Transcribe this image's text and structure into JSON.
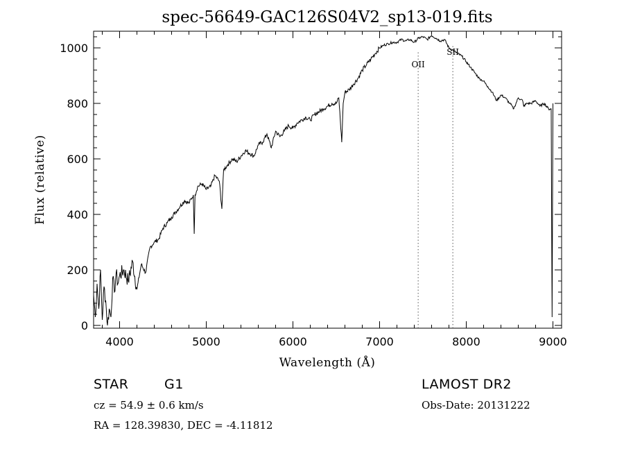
{
  "chart_data": {
    "type": "line",
    "title": "spec-56649-GAC126S04V2_sp13-019.fits",
    "xlabel": "Wavelength (Å)",
    "ylabel": "Flux (relative)",
    "xlim": [
      3700,
      9100
    ],
    "ylim": [
      -10,
      1060
    ],
    "x_ticks": [
      4000,
      5000,
      6000,
      7000,
      8000,
      9000
    ],
    "y_ticks": [
      0,
      200,
      400,
      600,
      800,
      1000
    ],
    "series": [
      {
        "x": [
          3700,
          3720,
          3740,
          3760,
          3780,
          3800,
          3820,
          3840,
          3860,
          3880,
          3900,
          3920,
          3940,
          3960,
          3980,
          4000,
          4050,
          4100,
          4150,
          4200,
          4250,
          4300,
          4350,
          4400,
          4450,
          4500,
          4550,
          4600,
          4650,
          4700,
          4750,
          4800,
          4850,
          4861,
          4870,
          4900,
          4950,
          5000,
          5050,
          5100,
          5150,
          5180,
          5200,
          5250,
          5300,
          5350,
          5400,
          5450,
          5500,
          5550,
          5600,
          5650,
          5700,
          5750,
          5800,
          5850,
          5900,
          5950,
          6000,
          6050,
          6100,
          6150,
          6200,
          6250,
          6300,
          6350,
          6400,
          6450,
          6500,
          6530,
          6563,
          6580,
          6600,
          6650,
          6700,
          6750,
          6800,
          6850,
          6900,
          6950,
          7000,
          7050,
          7100,
          7150,
          7200,
          7250,
          7300,
          7350,
          7400,
          7450,
          7500,
          7550,
          7600,
          7650,
          7700,
          7750,
          7800,
          7850,
          7900,
          7950,
          8000,
          8050,
          8100,
          8150,
          8200,
          8250,
          8300,
          8350,
          8400,
          8450,
          8500,
          8530,
          8542,
          8560,
          8600,
          8650,
          8662,
          8700,
          8750,
          8800,
          8850,
          8900,
          8950,
          8980,
          8990,
          9000
        ],
        "y": [
          110,
          30,
          150,
          60,
          200,
          20,
          140,
          90,
          0,
          60,
          30,
          170,
          120,
          190,
          150,
          180,
          200,
          160,
          230,
          130,
          220,
          190,
          280,
          300,
          310,
          350,
          370,
          390,
          410,
          430,
          450,
          440,
          470,
          330,
          470,
          500,
          510,
          490,
          500,
          540,
          520,
          420,
          560,
          580,
          600,
          590,
          610,
          630,
          620,
          610,
          650,
          660,
          690,
          640,
          700,
          680,
          700,
          720,
          710,
          730,
          740,
          750,
          740,
          760,
          770,
          780,
          790,
          800,
          800,
          820,
          660,
          800,
          840,
          850,
          870,
          890,
          920,
          940,
          960,
          980,
          1000,
          1010,
          1015,
          1020,
          1020,
          1030,
          1025,
          1030,
          1020,
          1035,
          1040,
          1030,
          1045,
          1035,
          1025,
          1030,
          1000,
          990,
          980,
          970,
          950,
          930,
          910,
          890,
          880,
          860,
          840,
          810,
          830,
          820,
          800,
          790,
          780,
          790,
          820,
          810,
          790,
          800,
          800,
          810,
          790,
          800,
          780,
          780,
          30,
          800
        ]
      }
    ],
    "line_markers": [
      {
        "label": "OII",
        "x": 7445
      },
      {
        "label": "SII",
        "x": 7845
      }
    ],
    "grid": false
  },
  "info": {
    "object_type": "STAR",
    "subclass": "G1",
    "survey": "LAMOST DR2",
    "cz": "cz = 54.9 ± 0.6 km/s",
    "obs_date": "Obs-Date: 20131222",
    "coords": "RA = 128.39830, DEC =  -4.11812"
  }
}
